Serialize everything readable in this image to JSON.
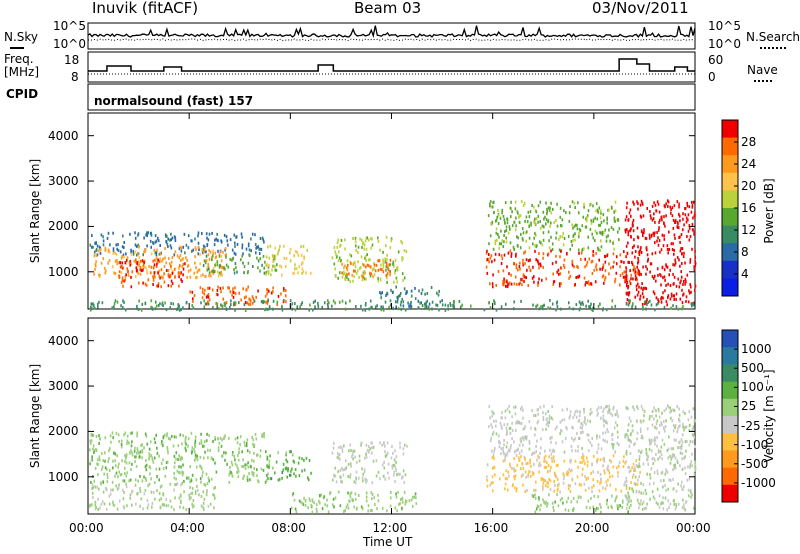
{
  "header": {
    "station": "Inuvik (fitACF)",
    "beam": "Beam 03",
    "date": "03/Nov/2011"
  },
  "labels": {
    "nsky": "N.Sky",
    "nsearch": "N.Search",
    "freq": "Freq.",
    "freq_unit": "[MHz]",
    "nave": "Nave",
    "cpid": "CPID",
    "cpid_value": "normalsound (fast) 157",
    "slant_range": "Slant Range [km]",
    "time_axis": "Time UT"
  },
  "noise_panel": {
    "left_ticks": [
      "10^5",
      "10^0"
    ],
    "right_ticks": [
      "10^5",
      "10^0"
    ]
  },
  "freq_panel": {
    "left_ticks": [
      "18",
      "8"
    ],
    "right_ticks": [
      "60",
      "0"
    ],
    "freq_steps": [
      {
        "t": 0.0,
        "v": 10.5
      },
      {
        "t": 0.75,
        "v": 13
      },
      {
        "t": 1.7,
        "v": 10.5
      },
      {
        "t": 3.0,
        "v": 12.5
      },
      {
        "t": 3.7,
        "v": 10.5
      },
      {
        "t": 9.1,
        "v": 13.5
      },
      {
        "t": 9.7,
        "v": 10.5
      },
      {
        "t": 21.0,
        "v": 16.5
      },
      {
        "t": 21.7,
        "v": 14
      },
      {
        "t": 22.2,
        "v": 10.5
      },
      {
        "t": 23.2,
        "v": 12.5
      },
      {
        "t": 23.7,
        "v": 10.5
      }
    ]
  },
  "colorbars": {
    "power": {
      "title": "Power [dB]",
      "ticks": [
        "28",
        "24",
        "20",
        "16",
        "12",
        "8",
        "4"
      ],
      "colors": [
        "#ee0000",
        "#ff6a00",
        "#ff9a1e",
        "#ffc24a",
        "#bcd23a",
        "#58a830",
        "#3a8a64",
        "#2a6aa6",
        "#1630c8",
        "#0a1ee6"
      ]
    },
    "velocity": {
      "title": "Velocity [m s⁻¹]",
      "ticks": [
        "1000",
        "500",
        "100",
        "25",
        "-25",
        "-100",
        "-500",
        "-1000"
      ],
      "colors": [
        "#2450b8",
        "#2a7aa0",
        "#3a8a64",
        "#5cb040",
        "#9ad07a",
        "#c8c8c8",
        "#ffc040",
        "#ff9a1e",
        "#ff6a00",
        "#ee0000"
      ]
    }
  },
  "chart_data": [
    {
      "type": "heatmap",
      "title": "Power [dB]",
      "xlabel": "Time UT",
      "ylabel": "Slant Range [km]",
      "x_ticks": [
        "00:00",
        "04:00",
        "08:00",
        "12:00",
        "16:00",
        "20:00",
        "00:00"
      ],
      "y_ticks": [
        "1000",
        "2000",
        "3000",
        "4000"
      ],
      "xlim": [
        0,
        24
      ],
      "ylim": [
        180,
        4500
      ],
      "colorbar_range": [
        0,
        30
      ],
      "regions": [
        {
          "t0": 0.0,
          "t1": 7.0,
          "r0": 1400,
          "r1": 1900,
          "v": 8
        },
        {
          "t0": 0.2,
          "t1": 5.5,
          "r0": 900,
          "r1": 1600,
          "v": 22
        },
        {
          "t0": 1.2,
          "t1": 3.8,
          "r0": 700,
          "r1": 1300,
          "v": 27
        },
        {
          "t0": 4.0,
          "t1": 7.8,
          "r0": 300,
          "r1": 700,
          "v": 26
        },
        {
          "t0": 4.5,
          "t1": 7.5,
          "r0": 1000,
          "r1": 1400,
          "v": 13
        },
        {
          "t0": 7.0,
          "t1": 8.8,
          "r0": 950,
          "r1": 1600,
          "v": 18
        },
        {
          "t0": 9.6,
          "t1": 12.6,
          "r0": 800,
          "r1": 1800,
          "v": 16
        },
        {
          "t0": 10.0,
          "t1": 12.0,
          "r0": 900,
          "r1": 1300,
          "v": 25
        },
        {
          "t0": 11.5,
          "t1": 14.0,
          "r0": 250,
          "r1": 700,
          "v": 9
        },
        {
          "t0": 15.7,
          "t1": 21.8,
          "r0": 700,
          "r1": 1500,
          "v": 27
        },
        {
          "t0": 15.8,
          "t1": 21.0,
          "r0": 1500,
          "r1": 2600,
          "v": 14
        },
        {
          "t0": 21.2,
          "t1": 24.0,
          "r0": 300,
          "r1": 2600,
          "v": 29
        },
        {
          "t0": 0.0,
          "t1": 24.0,
          "r0": 180,
          "r1": 400,
          "v": 11
        }
      ]
    },
    {
      "type": "heatmap",
      "title": "Velocity [m s⁻¹]",
      "xlabel": "Time UT",
      "ylabel": "Slant Range [km]",
      "x_ticks": [
        "00:00",
        "04:00",
        "08:00",
        "12:00",
        "16:00",
        "20:00",
        "00:00"
      ],
      "y_ticks": [
        "1000",
        "2000",
        "3000",
        "4000"
      ],
      "xlim": [
        0,
        24
      ],
      "ylim": [
        180,
        4500
      ],
      "colorbar_range": [
        -1000,
        1000
      ],
      "regions": [
        {
          "t0": 0.0,
          "t1": 7.0,
          "r0": 900,
          "r1": 2000,
          "v": 150
        },
        {
          "t0": 0.0,
          "t1": 5.0,
          "r0": 300,
          "r1": 900,
          "v": 30
        },
        {
          "t0": 7.0,
          "t1": 8.8,
          "r0": 950,
          "r1": 1600,
          "v": 300
        },
        {
          "t0": 9.6,
          "t1": 12.6,
          "r0": 900,
          "r1": 1800,
          "v": -60
        },
        {
          "t0": 8.0,
          "t1": 13.0,
          "r0": 250,
          "r1": 700,
          "v": 120
        },
        {
          "t0": 15.7,
          "t1": 21.8,
          "r0": 700,
          "r1": 1500,
          "v": -250
        },
        {
          "t0": 15.8,
          "t1": 21.0,
          "r0": 1500,
          "r1": 2600,
          "v": -80
        },
        {
          "t0": 17.5,
          "t1": 21.5,
          "r0": 250,
          "r1": 650,
          "v": 120
        },
        {
          "t0": 21.2,
          "t1": 24.0,
          "r0": 300,
          "r1": 2600,
          "v": -20
        }
      ]
    }
  ]
}
